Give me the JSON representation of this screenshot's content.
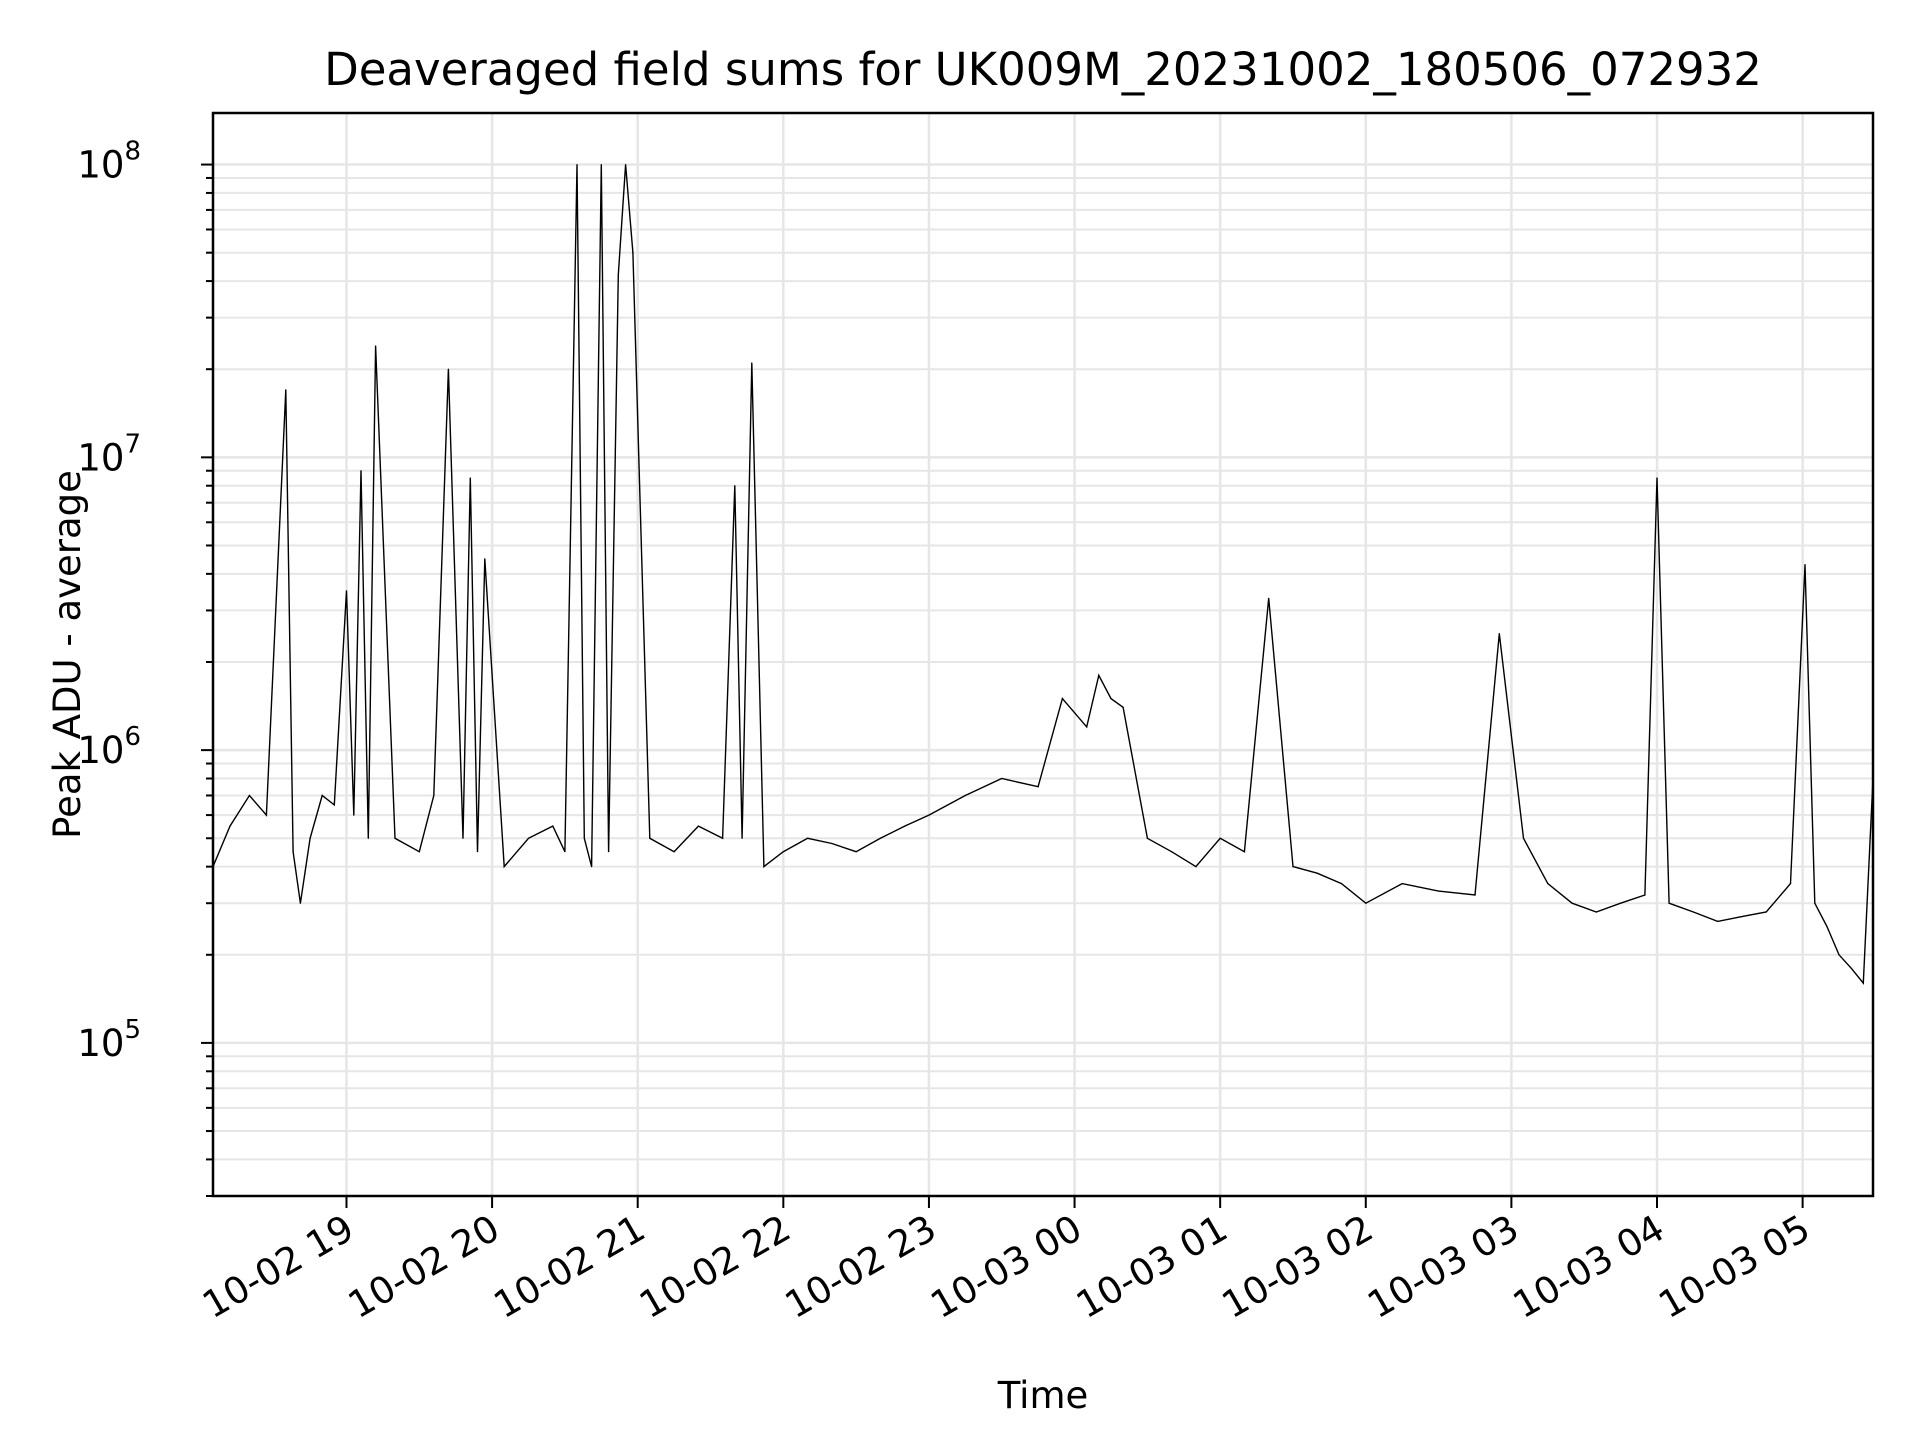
{
  "chart_data": {
    "type": "line",
    "title": "Deaveraged field sums for UK009M_20231002_180506_072932",
    "xlabel": "Time",
    "ylabel": "Peak ADU - average",
    "yscale": "log",
    "ylim": [
      30000,
      150000000
    ],
    "xlim": [
      "2023-10-02 18:05",
      "2023-10-03 05:29"
    ],
    "grid": true,
    "line_color": "#000000",
    "grid_color": "#e6e6e6",
    "x_ticks": [
      {
        "value": "2023-10-02 19:00",
        "label": "10-02 19"
      },
      {
        "value": "2023-10-02 20:00",
        "label": "10-02 20"
      },
      {
        "value": "2023-10-02 21:00",
        "label": "10-02 21"
      },
      {
        "value": "2023-10-02 22:00",
        "label": "10-02 22"
      },
      {
        "value": "2023-10-02 23:00",
        "label": "10-02 23"
      },
      {
        "value": "2023-10-03 00:00",
        "label": "10-03 00"
      },
      {
        "value": "2023-10-03 01:00",
        "label": "10-03 01"
      },
      {
        "value": "2023-10-03 02:00",
        "label": "10-03 02"
      },
      {
        "value": "2023-10-03 03:00",
        "label": "10-03 03"
      },
      {
        "value": "2023-10-03 04:00",
        "label": "10-03 04"
      },
      {
        "value": "2023-10-03 05:00",
        "label": "10-03 05"
      }
    ],
    "y_ticks": [
      {
        "value": 100000,
        "base": "10",
        "exp": "5"
      },
      {
        "value": 1000000,
        "base": "10",
        "exp": "6"
      },
      {
        "value": 10000000,
        "base": "10",
        "exp": "7"
      },
      {
        "value": 100000000,
        "base": "10",
        "exp": "8"
      }
    ],
    "series": [
      {
        "x": [
          "2023-10-02 18:05",
          "2023-10-02 18:12",
          "2023-10-02 18:20",
          "2023-10-02 18:27",
          "2023-10-02 18:35",
          "2023-10-02 18:38",
          "2023-10-02 18:41",
          "2023-10-02 18:45",
          "2023-10-02 18:50",
          "2023-10-02 18:55",
          "2023-10-02 19:00",
          "2023-10-02 19:03",
          "2023-10-02 19:06",
          "2023-10-02 19:09",
          "2023-10-02 19:12",
          "2023-10-02 19:20",
          "2023-10-02 19:30",
          "2023-10-02 19:36",
          "2023-10-02 19:42",
          "2023-10-02 19:48",
          "2023-10-02 19:51",
          "2023-10-02 19:54",
          "2023-10-02 19:57",
          "2023-10-02 20:05",
          "2023-10-02 20:15",
          "2023-10-02 20:25",
          "2023-10-02 20:30",
          "2023-10-02 20:35",
          "2023-10-02 20:38",
          "2023-10-02 20:41",
          "2023-10-02 20:45",
          "2023-10-02 20:48",
          "2023-10-02 20:52",
          "2023-10-02 20:55",
          "2023-10-02 20:58",
          "2023-10-02 21:05",
          "2023-10-02 21:15",
          "2023-10-02 21:25",
          "2023-10-02 21:35",
          "2023-10-02 21:40",
          "2023-10-02 21:43",
          "2023-10-02 21:47",
          "2023-10-02 21:52",
          "2023-10-02 22:00",
          "2023-10-02 22:10",
          "2023-10-02 22:20",
          "2023-10-02 22:30",
          "2023-10-02 22:40",
          "2023-10-02 22:50",
          "2023-10-02 23:00",
          "2023-10-02 23:15",
          "2023-10-02 23:30",
          "2023-10-02 23:45",
          "2023-10-02 23:55",
          "2023-10-03 00:05",
          "2023-10-03 00:10",
          "2023-10-03 00:15",
          "2023-10-03 00:20",
          "2023-10-03 00:30",
          "2023-10-03 00:40",
          "2023-10-03 00:50",
          "2023-10-03 01:00",
          "2023-10-03 01:10",
          "2023-10-03 01:20",
          "2023-10-03 01:30",
          "2023-10-03 01:40",
          "2023-10-03 01:50",
          "2023-10-03 02:00",
          "2023-10-03 02:15",
          "2023-10-03 02:30",
          "2023-10-03 02:45",
          "2023-10-03 02:55",
          "2023-10-03 03:05",
          "2023-10-03 03:15",
          "2023-10-03 03:25",
          "2023-10-03 03:35",
          "2023-10-03 03:45",
          "2023-10-03 03:55",
          "2023-10-03 04:00",
          "2023-10-03 04:05",
          "2023-10-03 04:15",
          "2023-10-03 04:25",
          "2023-10-03 04:35",
          "2023-10-03 04:45",
          "2023-10-03 04:55",
          "2023-10-03 05:01",
          "2023-10-03 05:05",
          "2023-10-03 05:10",
          "2023-10-03 05:15",
          "2023-10-03 05:20",
          "2023-10-03 05:25",
          "2023-10-03 05:29"
        ],
        "y": [
          400000,
          550000,
          700000,
          600000,
          17000000,
          450000,
          300000,
          500000,
          700000,
          650000,
          3500000,
          600000,
          9000000,
          500000,
          24000000,
          500000,
          450000,
          700000,
          20000000,
          500000,
          8500000,
          450000,
          4500000,
          400000,
          500000,
          550000,
          450000,
          100000000,
          500000,
          400000,
          100000000,
          450000,
          42000000,
          100000000,
          50000000,
          500000,
          450000,
          550000,
          500000,
          8000000,
          500000,
          21000000,
          400000,
          450000,
          500000,
          480000,
          450000,
          500000,
          550000,
          600000,
          700000,
          800000,
          750000,
          1500000,
          1200000,
          1800000,
          1500000,
          1400000,
          500000,
          450000,
          400000,
          500000,
          450000,
          3300000,
          400000,
          380000,
          350000,
          300000,
          350000,
          330000,
          320000,
          2500000,
          500000,
          350000,
          300000,
          280000,
          300000,
          320000,
          8500000,
          300000,
          280000,
          260000,
          270000,
          280000,
          350000,
          4300000,
          300000,
          250000,
          200000,
          180000,
          160000,
          800000
        ]
      }
    ]
  }
}
